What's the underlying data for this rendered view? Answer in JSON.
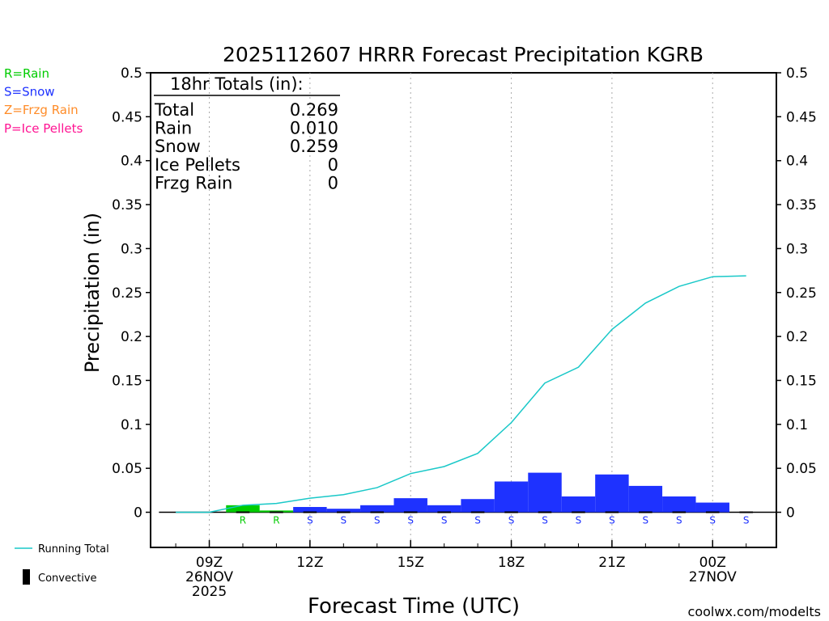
{
  "chart_data": {
    "type": "bar",
    "title": "2025112607 HRRR Forecast Precipitation KGRB",
    "xlabel": "Forecast Time (UTC)",
    "ylabel": "Precipitation (in)",
    "ylim": [
      -0.04,
      0.5
    ],
    "y_ticks": [
      "0.5",
      "0.45",
      "0.4",
      "0.35",
      "0.3",
      "0.25",
      "0.2",
      "0.15",
      "0.1",
      "0.05",
      "0"
    ],
    "y_tick_values": [
      0.5,
      0.45,
      0.4,
      0.35,
      0.3,
      0.25,
      0.2,
      0.15,
      0.1,
      0.05,
      0
    ],
    "x_hour_range": [
      7.25,
      25.9
    ],
    "x_ticks": [
      {
        "hour": 9,
        "lines": [
          "09Z",
          "26NOV",
          "2025"
        ]
      },
      {
        "hour": 12,
        "lines": [
          "12Z"
        ]
      },
      {
        "hour": 15,
        "lines": [
          "15Z"
        ]
      },
      {
        "hour": 18,
        "lines": [
          "18Z"
        ]
      },
      {
        "hour": 21,
        "lines": [
          "21Z"
        ]
      },
      {
        "hour": 24,
        "lines": [
          "00Z",
          "27NOV"
        ]
      }
    ],
    "bars": [
      {
        "hour": 10,
        "value": 0.008,
        "type": "R"
      },
      {
        "hour": 11,
        "value": 0.002,
        "type": "R"
      },
      {
        "hour": 12,
        "value": 0.006,
        "type": "S"
      },
      {
        "hour": 13,
        "value": 0.004,
        "type": "S"
      },
      {
        "hour": 14,
        "value": 0.008,
        "type": "S"
      },
      {
        "hour": 15,
        "value": 0.016,
        "type": "S"
      },
      {
        "hour": 16,
        "value": 0.008,
        "type": "S"
      },
      {
        "hour": 17,
        "value": 0.015,
        "type": "S"
      },
      {
        "hour": 18,
        "value": 0.035,
        "type": "S"
      },
      {
        "hour": 19,
        "value": 0.045,
        "type": "S"
      },
      {
        "hour": 20,
        "value": 0.018,
        "type": "S"
      },
      {
        "hour": 21,
        "value": 0.043,
        "type": "S"
      },
      {
        "hour": 22,
        "value": 0.03,
        "type": "S"
      },
      {
        "hour": 23,
        "value": 0.018,
        "type": "S"
      },
      {
        "hour": 24,
        "value": 0.011,
        "type": "S"
      },
      {
        "hour": 25,
        "value": 0.0,
        "type": "S"
      }
    ],
    "running_total": {
      "name": "Running Total",
      "x": [
        8,
        9,
        10,
        11,
        12,
        13,
        14,
        15,
        16,
        17,
        18,
        19,
        20,
        21,
        22,
        23,
        24,
        25
      ],
      "y": [
        0,
        0,
        0.008,
        0.01,
        0.016,
        0.02,
        0.028,
        0.044,
        0.052,
        0.067,
        0.102,
        0.147,
        0.165,
        0.208,
        0.238,
        0.257,
        0.268,
        0.269
      ]
    },
    "type_colors": {
      "R": "#00cc00",
      "S": "#1e32ff",
      "Z": "#ff8c28",
      "P": "#ff1493"
    },
    "line_color": "#19c8c8",
    "convective_color": "#000000"
  },
  "totals_box": {
    "title": "18hr Totals (in):",
    "rows": [
      {
        "label": "Total",
        "value": "0.269"
      },
      {
        "label": "Rain",
        "value": "0.010"
      },
      {
        "label": "Snow",
        "value": "0.259"
      },
      {
        "label": "Ice Pellets",
        "value": "0"
      },
      {
        "label": "Frzg Rain",
        "value": "0"
      }
    ]
  },
  "type_legend": [
    {
      "text": "R=Rain",
      "color": "#00cc00"
    },
    {
      "text": "S=Snow",
      "color": "#1e32ff"
    },
    {
      "text": "Z=Frzg Rain",
      "color": "#ff8c28"
    },
    {
      "text": "P=Ice Pellets",
      "color": "#ff1493"
    }
  ],
  "legend": {
    "running_total": "Running Total",
    "convective": "Convective"
  },
  "credit": {
    "text": "coolwx.com/modelts",
    "color": "#cc0000"
  }
}
